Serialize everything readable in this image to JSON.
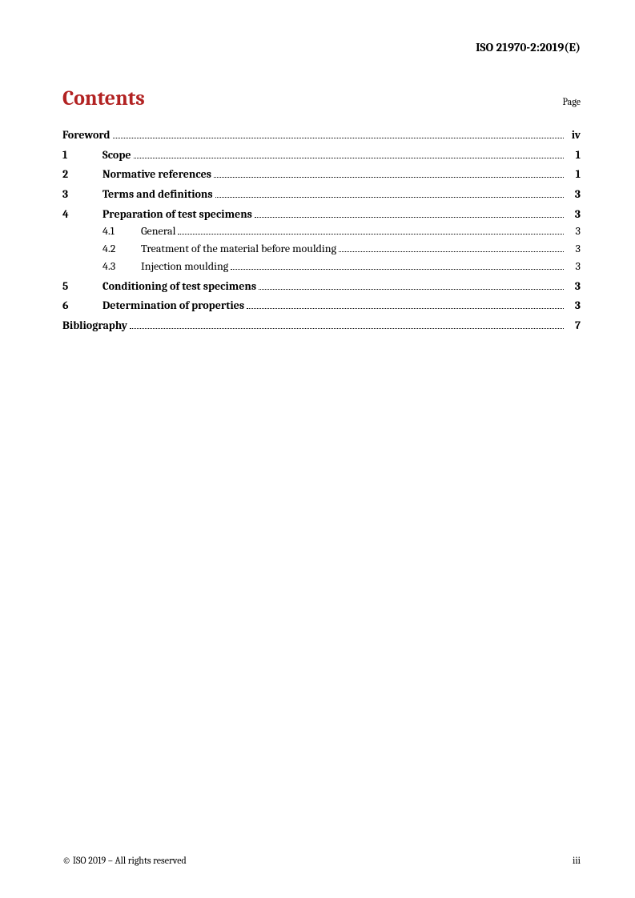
{
  "doc_id": "ISO 21970-2:2019(E)",
  "title": "Contents",
  "page_label": "Page",
  "footer_left": "© ISO 2019 – All rights reserved",
  "footer_right": "iii",
  "colors": {
    "title": "#b22222",
    "text": "#000000",
    "background": "#ffffff"
  },
  "entries": {
    "foreword": {
      "title": "Foreword",
      "page": "iv"
    },
    "e1": {
      "num": "1",
      "title": "Scope",
      "page": "1"
    },
    "e2": {
      "num": "2",
      "title": "Normative references",
      "page": "1"
    },
    "e3": {
      "num": "3",
      "title": "Terms and definitions",
      "page": "3"
    },
    "e4": {
      "num": "4",
      "title": "Preparation of test specimens",
      "page": "3"
    },
    "e4_1": {
      "num": "4.1",
      "title": "General",
      "page": "3"
    },
    "e4_2": {
      "num": "4.2",
      "title": "Treatment of the material before moulding",
      "page": "3"
    },
    "e4_3": {
      "num": "4.3",
      "title": "Injection moulding",
      "page": "3"
    },
    "e5": {
      "num": "5",
      "title": "Conditioning of test specimens",
      "page": "3"
    },
    "e6": {
      "num": "6",
      "title": "Determination of properties",
      "page": "3"
    },
    "biblio": {
      "title": "Bibliography",
      "page": "7"
    }
  }
}
